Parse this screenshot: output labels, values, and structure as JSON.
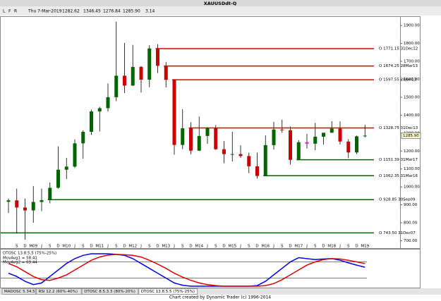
{
  "window": {
    "title": "XAUUSDdt-Q"
  },
  "info_bar": {
    "buttons": [
      "L",
      "F",
      "R"
    ],
    "date": "Thu 7-Mar-2019",
    "open": "1282.62",
    "high": "1346.45",
    "low": "1276.84",
    "close": "1285.90",
    "change": "3.14"
  },
  "price_chart": {
    "type": "candlestick",
    "categories": [
      null,
      "S",
      "D",
      "M09",
      "J",
      "S",
      "D",
      "M10",
      "J",
      "S",
      "D",
      "M11",
      "J",
      "S",
      "D",
      "M12",
      "J",
      "S",
      "D",
      "M13",
      "J",
      "S",
      "D",
      "M14",
      "J",
      "S",
      "D",
      "M15",
      "J",
      "S",
      "D",
      "M16",
      "J",
      "S",
      "D",
      "M17",
      "J",
      "S",
      "D",
      "M18",
      "J",
      "S",
      "D",
      "M19"
    ],
    "open": [
      917,
      925,
      885,
      869,
      916,
      926,
      995,
      1096,
      1113,
      1243,
      1307,
      1421,
      1439,
      1500,
      1620,
      1565,
      1669,
      1598,
      1772,
      1675,
      1597,
      1234,
      1327,
      1202,
      1284,
      1327,
      1210,
      1183,
      1183,
      1172,
      1115,
      1061,
      1233,
      1320,
      1316,
      1151,
      1249,
      1241,
      1280,
      1302,
      1325,
      1253,
      1192,
      1282.62
    ],
    "high": [
      935,
      990,
      935,
      1005,
      990,
      1024,
      1226,
      1162,
      1265,
      1315,
      1431,
      1447,
      1577,
      1921,
      1803,
      1792,
      1674,
      1790,
      1796,
      1697,
      1600,
      1434,
      1361,
      1392,
      1332,
      1345,
      1255,
      1307,
      1232,
      1191,
      1191,
      1287,
      1362,
      1375,
      1337,
      1261,
      1296,
      1357,
      1298,
      1366,
      1365,
      1266,
      1286,
      1346.45
    ],
    "low": [
      855,
      740,
      705,
      800,
      865,
      908,
      990,
      1044,
      1106,
      1157,
      1290,
      1309,
      1420,
      1478,
      1523,
      1563,
      1527,
      1556,
      1635,
      1555,
      1180,
      1211,
      1182,
      1200,
      1240,
      1206,
      1132,
      1142,
      1162,
      1077,
      1046,
      1062,
      1208,
      1302,
      1124,
      1151,
      1214,
      1205,
      1236,
      1302,
      1237,
      1160,
      1182,
      1276.84
    ],
    "close": [
      925,
      885,
      869,
      916,
      926,
      995,
      1096,
      1113,
      1243,
      1307,
      1421,
      1439,
      1500,
      1620,
      1565,
      1669,
      1598,
      1772,
      1675,
      1597,
      1234,
      1327,
      1202,
      1284,
      1327,
      1210,
      1183,
      1183,
      1172,
      1115,
      1061,
      1233,
      1320,
      1316,
      1151,
      1249,
      1241,
      1280,
      1302,
      1325,
      1253,
      1192,
      1282,
      1285.9
    ],
    "up_color": "#006400",
    "down_color": "#cc0000",
    "doji_color": "#dd22dd",
    "ylim": [
      690,
      1940
    ],
    "yticks": [
      {
        "value": 700,
        "label": "700.00"
      },
      {
        "value": 800,
        "label": "800.00"
      },
      {
        "value": 900,
        "label": "900.00"
      },
      {
        "value": 1000,
        "label": "1000.00"
      },
      {
        "value": 1100,
        "label": "1100.00"
      },
      {
        "value": 1200,
        "label": "1200.00"
      },
      {
        "value": 1300,
        "label": "1300.00"
      },
      {
        "value": 1400,
        "label": "1400.00"
      },
      {
        "value": 1500,
        "label": "1500.00"
      },
      {
        "value": 1600,
        "label": "1600.00"
      },
      {
        "value": 1700,
        "label": "1700.00"
      },
      {
        "value": 1800,
        "label": "1800.00"
      },
      {
        "value": 1900,
        "label": "1900.00"
      }
    ],
    "last_price": {
      "value": 1285.9,
      "label": "1285.90"
    },
    "levels": [
      {
        "value": 1771.15,
        "label": "O 1771.15 31Dec12",
        "color": "#e00000"
      },
      {
        "value": 1674.25,
        "label": "O 1674.25 28Mar13",
        "color": "#e00000"
      },
      {
        "value": 1597.55,
        "label": "O 1597.55 28Jun13",
        "color": "#e00000"
      },
      {
        "value": 1328.75,
        "label": "O 1328.75 31Dec13",
        "color": "#e00000"
      },
      {
        "value": 1151.39,
        "label": "O 1151.39 31Mar17",
        "color": "#006400"
      },
      {
        "value": 1062.35,
        "label": "O 1062.35 31Mar16",
        "color": "#006400"
      },
      {
        "value": 928.85,
        "label": "O 928.85 30Sep09",
        "color": "#006400"
      },
      {
        "value": 743.5,
        "label": "O 743.50 31Dec07",
        "color": "#006400"
      }
    ]
  },
  "oscillator": {
    "type": "line",
    "title": "DTOSC 13.8.5.5 (75%-25%)",
    "ylim": [
      0,
      100
    ],
    "levels": [
      75,
      25
    ],
    "series": [
      {
        "name": "MovAvg1 = 58.41",
        "color": "#0000ee",
        "values": [
          40,
          30,
          15,
          5,
          10,
          30,
          50,
          70,
          85,
          95,
          100,
          100,
          100,
          98,
          95,
          85,
          70,
          55,
          40,
          25,
          10,
          3,
          0,
          0,
          0,
          0,
          0,
          0,
          0,
          0,
          2,
          15,
          35,
          55,
          75,
          88,
          85,
          82,
          84,
          85,
          80,
          72,
          65,
          58.41
        ]
      },
      {
        "name": "MovAvg2 = 69.44",
        "color": "#e00000",
        "values": [
          70,
          60,
          45,
          30,
          20,
          18,
          25,
          35,
          50,
          65,
          80,
          90,
          96,
          98,
          97,
          95,
          90,
          80,
          68,
          55,
          40,
          28,
          18,
          10,
          5,
          2,
          0,
          0,
          0,
          0,
          0,
          2,
          8,
          20,
          35,
          50,
          65,
          75,
          82,
          85,
          84,
          80,
          75,
          69.44
        ]
      }
    ]
  },
  "tabs": [
    "MADOSC 5.34.5",
    "RSI 12.2 (60%-40%)",
    "DTOSC 8.5.3.3 (80%-20%)",
    "DTOSC 13.8.5.5 (75%-25%)"
  ],
  "footer": "Chart created by Dynamic Trader  (c)  1996-2014"
}
